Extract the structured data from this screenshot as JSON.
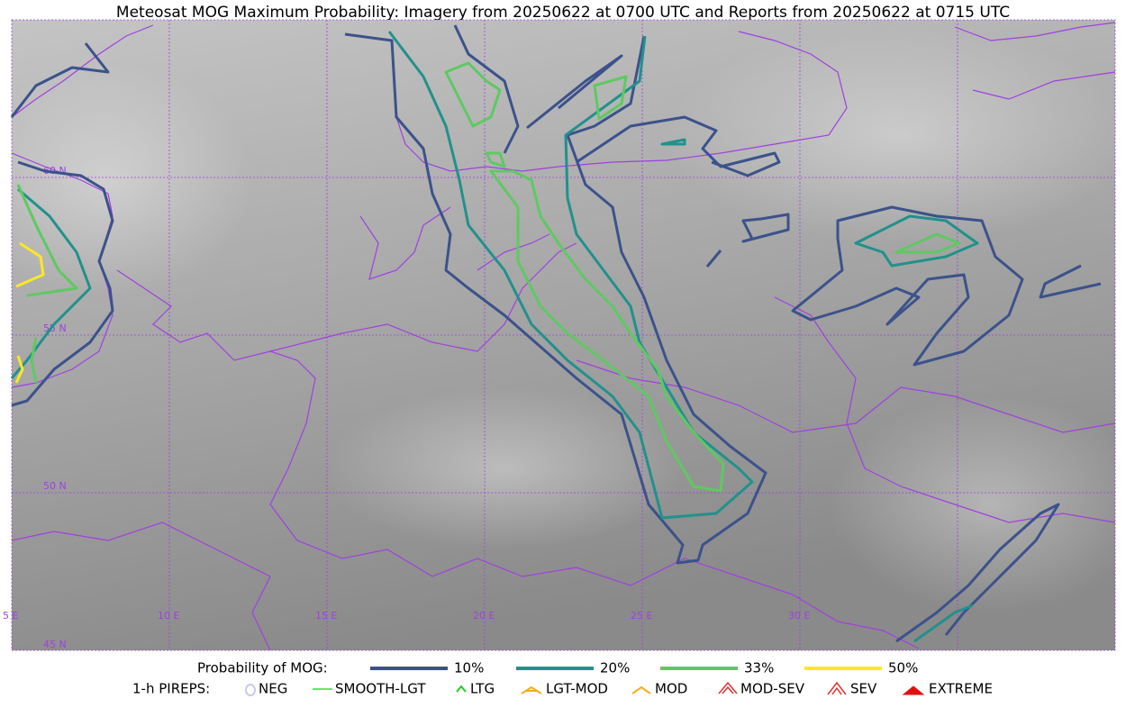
{
  "title": "Meteosat MOG Maximum Probability: Imagery from 20250622 at 0700 UTC and Reports from 20250622 at 0715 UTC",
  "grid_labels": {
    "lat": [
      "60 N",
      "55 N",
      "50 N",
      "45 N"
    ],
    "lon": [
      "5 E",
      "10 E",
      "15 E",
      "20 E",
      "25 E",
      "30 E"
    ]
  },
  "legend": {
    "probability": {
      "label": "Probability of MOG:",
      "levels": [
        {
          "label": "10%",
          "color": "#3b528b"
        },
        {
          "label": "20%",
          "color": "#21918c"
        },
        {
          "label": "33%",
          "color": "#5ec962"
        },
        {
          "label": "50%",
          "color": "#fde725"
        }
      ]
    },
    "pireps": {
      "label": "1-h PIREPS:",
      "items": [
        {
          "label": "NEG",
          "color": "#c8c8f0"
        },
        {
          "label": "SMOOTH-LGT",
          "color": "#33dd33"
        },
        {
          "label": "LTG",
          "color": "#22cc22"
        },
        {
          "label": "LGT-MOD",
          "color": "#f0b020"
        },
        {
          "label": "MOD",
          "color": "#f0b020"
        },
        {
          "label": "MOD-SEV",
          "color": "#e03030"
        },
        {
          "label": "SEV",
          "color": "#e03030"
        },
        {
          "label": "EXTREME",
          "color": "#e01010"
        }
      ]
    }
  }
}
